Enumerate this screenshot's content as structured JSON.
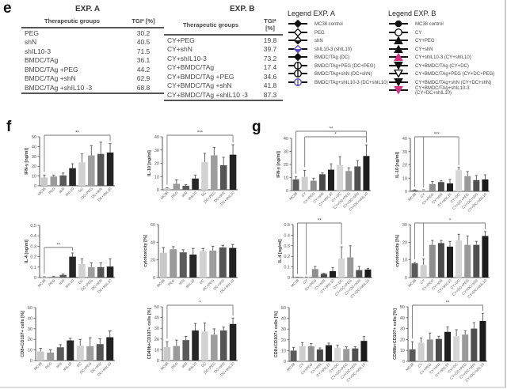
{
  "panels": {
    "e": "e",
    "f": "f",
    "g": "g"
  },
  "table_a": {
    "title": "EXP. A",
    "headers": [
      "Therapeutic groups",
      "TGI* [%]"
    ],
    "rows": [
      [
        "PEG",
        "30.2"
      ],
      [
        "shN",
        "40.5"
      ],
      [
        "shIL10-3",
        "71.5"
      ],
      [
        "BMDC/TAg",
        "36.1"
      ],
      [
        "BMDC/TAg +PEG",
        "44.2"
      ],
      [
        "BMDC/TAg +shN",
        "62.9"
      ],
      [
        "BMDC/TAg +shIL10 -3",
        "68.8"
      ]
    ]
  },
  "table_b": {
    "title": "EXP. B",
    "headers": [
      "Therapeutic groups",
      "TGI* [%]"
    ],
    "rows": [
      [
        "CY+PEG",
        "19.8"
      ],
      [
        "CY+shN",
        "39.7"
      ],
      [
        "CY+shIL10-3",
        "73.2"
      ],
      [
        "CY+BMDC/TAg",
        "17.4"
      ],
      [
        "CY+BMDC/TAg +PEG",
        "34.6"
      ],
      [
        "CY+BMDC/TAg +shN",
        "41.8"
      ],
      [
        "CY+BMDC/TAg +shIL10 -3",
        "87.3"
      ]
    ]
  },
  "legend_a": {
    "title": "Legend EXP. A",
    "items": [
      {
        "label": "MC38 control",
        "marker": "filled-diamond",
        "color": "#111111"
      },
      {
        "label": "PEG",
        "marker": "open-diamond",
        "color": "#111111"
      },
      {
        "label": "shN",
        "marker": "half-diamond",
        "color": "#111111"
      },
      {
        "label": "shIL10-3 (shIL10)",
        "marker": "half-diamond",
        "color": "#5b4bc4"
      },
      {
        "label": "BMDC/TAg (DC)",
        "marker": "filled-diamond",
        "color": "#111111"
      },
      {
        "label": "BMDC/TAg+PEG (DC+PEG)",
        "marker": "circle-split",
        "color": "#111111"
      },
      {
        "label": "BMDC/TAg+shN (DC+shN)",
        "marker": "circle-split",
        "color": "#111111"
      },
      {
        "label": "BMDC/TAg+shIL10-3 (DC+shIL10)",
        "marker": "circle-split",
        "color": "#5b4bc4"
      }
    ]
  },
  "legend_b": {
    "title": "Legend EXP. B",
    "items": [
      {
        "label": "MC38 control",
        "marker": "filled-circle",
        "color": "#111111"
      },
      {
        "label": "CY",
        "marker": "open-circle",
        "color": "#111111"
      },
      {
        "label": "CY+PEG",
        "marker": "triangle-up",
        "color": "#111111"
      },
      {
        "label": "CY+shN",
        "marker": "triangle-up",
        "color": "#111111"
      },
      {
        "label": "CY+shIL10-3 (CY+shIL10)",
        "marker": "triangle-up",
        "color": "#d63384"
      },
      {
        "label": "CY+BMDC/TAg (CY+DC)",
        "marker": "triangle-down",
        "color": "#111111"
      },
      {
        "label": "CY+BMDC/TAg+PEG (CY+DC+PEG)",
        "marker": "triangle-down-open",
        "color": "#111111"
      },
      {
        "label": "CY+BMDC/TAg+shN (CY+DC+shN)",
        "marker": "triangle-down",
        "color": "#111111"
      },
      {
        "label": "CY+BMDC/TAg+shIL10-3 (CY+DC+shIL10)",
        "marker": "triangle-down",
        "color": "#d63384"
      }
    ]
  },
  "chart_data": [
    {
      "id": "f1",
      "type": "bar",
      "panel": "f",
      "ylabel": "IFN-γ [ng/ml]",
      "ylim": [
        0,
        50
      ],
      "yticks": [
        0,
        10,
        20,
        30,
        40,
        50
      ],
      "categories": [
        "MC38",
        "PEG",
        "shN",
        "shIL10",
        "DC",
        "DC+PEG",
        "DC+shN",
        "DC+shIL10"
      ],
      "values": [
        8.5,
        9.5,
        10.5,
        18,
        24,
        31,
        32.5,
        34
      ],
      "errors": [
        2.5,
        1.5,
        2.5,
        4.5,
        8.5,
        10,
        12,
        9
      ],
      "colors": [
        "#c9c9c9",
        "#9a9a9a",
        "#5a5a5a",
        "#262626",
        "#d2d2d2",
        "#9e9e9e",
        "#555555",
        "#222222"
      ],
      "brackets": [
        {
          "from": 0,
          "to": [
            7
          ],
          "label": "**",
          "level": 0
        }
      ]
    },
    {
      "id": "f2",
      "type": "bar",
      "panel": "f",
      "ylabel": "IL-10 [ng/ml]",
      "ylim": [
        0,
        40
      ],
      "yticks": [
        0,
        10,
        20,
        30,
        40
      ],
      "categories": [
        "MC38",
        "PEG",
        "shN",
        "shIL10",
        "DC",
        "DC+PEG",
        "DC+shN",
        "DC+shIL10"
      ],
      "values": [
        1,
        4.5,
        3,
        8.5,
        21,
        26,
        18.5,
        26.5
      ],
      "errors": [
        0.5,
        3,
        0.8,
        2.5,
        6.5,
        6,
        6,
        7.5
      ],
      "colors": [
        "#c9c9c9",
        "#9a9a9a",
        "#5a5a5a",
        "#262626",
        "#d2d2d2",
        "#9e9e9e",
        "#555555",
        "#222222"
      ],
      "brackets": [
        {
          "from": 0,
          "to": [
            7
          ],
          "label": "***",
          "level": 0
        }
      ]
    },
    {
      "id": "f3",
      "type": "bar",
      "panel": "f",
      "ylabel": "IL-4 [ng/ml]",
      "ylim": [
        0,
        0.5
      ],
      "yticks": [
        0.0,
        0.1,
        0.2,
        0.3,
        0.4,
        0.5
      ],
      "categories": [
        "MC38",
        "PEG",
        "shN",
        "shIL10",
        "DC",
        "DC+PEG",
        "DC+shN",
        "DC+shIL10"
      ],
      "values": [
        0.005,
        0.008,
        0.025,
        0.2,
        0.13,
        0.1,
        0.1,
        0.105
      ],
      "errors": [
        0.003,
        0.004,
        0.008,
        0.035,
        0.05,
        0.04,
        0.04,
        0.075
      ],
      "colors": [
        "#c9c9c9",
        "#9a9a9a",
        "#5a5a5a",
        "#262626",
        "#d2d2d2",
        "#9e9e9e",
        "#555555",
        "#222222"
      ],
      "brackets": [
        {
          "from": 0,
          "to": [
            3
          ],
          "label": "**",
          "level": 0
        }
      ]
    },
    {
      "id": "f4",
      "type": "bar",
      "panel": "f",
      "ylabel": "cytotoxicity [%]",
      "ylim": [
        0,
        60
      ],
      "yticks": [
        0,
        20,
        40,
        60
      ],
      "categories": [
        "MC38",
        "PEG",
        "shN",
        "shIL10",
        "DC",
        "DC+PEG",
        "DC+shN",
        "DC+shIL10"
      ],
      "values": [
        28,
        32,
        28.5,
        26,
        30,
        30.5,
        34,
        33.5
      ],
      "errors": [
        6,
        3,
        3,
        7,
        3,
        5,
        2.5,
        4
      ],
      "colors": [
        "#c9c9c9",
        "#9a9a9a",
        "#5a5a5a",
        "#262626",
        "#d2d2d2",
        "#9e9e9e",
        "#555555",
        "#222222"
      ],
      "brackets": []
    },
    {
      "id": "f5",
      "type": "bar",
      "panel": "f",
      "ylabel": "CD8+CD107+ cells [%]",
      "ylim": [
        0,
        50
      ],
      "yticks": [
        0,
        10,
        20,
        30,
        40,
        50
      ],
      "categories": [
        "MC38",
        "PEG",
        "shN",
        "shIL10",
        "DC",
        "DC+PEG",
        "DC+shN",
        "DC+shIL10"
      ],
      "values": [
        8.5,
        7.5,
        12.5,
        19,
        14,
        13.5,
        15.5,
        22
      ],
      "errors": [
        3,
        2.5,
        2.5,
        2,
        6,
        8,
        5,
        6
      ],
      "colors": [
        "#c9c9c9",
        "#9a9a9a",
        "#5a5a5a",
        "#262626",
        "#d2d2d2",
        "#9e9e9e",
        "#555555",
        "#222222"
      ],
      "brackets": []
    },
    {
      "id": "f6",
      "type": "bar",
      "panel": "f",
      "ylabel": "CD49b+CD107+ cells [%]",
      "ylim": [
        0,
        50
      ],
      "yticks": [
        0,
        10,
        20,
        30,
        40,
        50
      ],
      "categories": [
        "MC38",
        "PEG",
        "shN",
        "shIL10",
        "DC",
        "DC+PEG",
        "DC+shN",
        "DC+shIL10"
      ],
      "values": [
        12.5,
        13.5,
        19,
        28,
        27,
        24,
        28,
        34
      ],
      "errors": [
        5,
        5.5,
        3.5,
        6.5,
        8,
        5.5,
        3,
        5.5
      ],
      "colors": [
        "#c9c9c9",
        "#9a9a9a",
        "#5a5a5a",
        "#262626",
        "#d2d2d2",
        "#9e9e9e",
        "#555555",
        "#222222"
      ],
      "brackets": [
        {
          "from": 0,
          "to": [
            7
          ],
          "label": "*",
          "level": 0
        }
      ]
    },
    {
      "id": "g1",
      "type": "bar",
      "panel": "g",
      "ylabel": "IFN-γ [ng/ml]",
      "ylim": [
        0,
        40
      ],
      "yticks": [
        0,
        10,
        20,
        30,
        40
      ],
      "categories": [
        "MC38",
        "CY",
        "CY+PEG",
        "CY+shN",
        "CY+shIL10",
        "CY+DC",
        "CY+DC+PEG",
        "CY+DC+shN",
        "CY+DC+shIL10"
      ],
      "values": [
        8.5,
        10.5,
        7.5,
        12.5,
        16,
        19.5,
        15,
        18.5,
        26.5
      ],
      "errors": [
        2,
        5,
        2,
        1,
        4.5,
        6.5,
        2.5,
        4.5,
        8.5
      ],
      "colors": [
        "#5a5a5a",
        "#cfcfcf",
        "#8f8f8f",
        "#4a4a4a",
        "#1f1f1f",
        "#d6d6d6",
        "#999999",
        "#505050",
        "#1c1c1c"
      ],
      "brackets": [
        {
          "from": 0,
          "to": [
            8
          ],
          "label": "**",
          "level": 1
        },
        {
          "from": 1,
          "to": [
            8
          ],
          "label": "*",
          "level": 0
        }
      ]
    },
    {
      "id": "g2",
      "type": "bar",
      "panel": "g",
      "ylabel": "IL-10 [ng/ml]",
      "ylim": [
        0,
        40
      ],
      "yticks": [
        0,
        10,
        20,
        30,
        40
      ],
      "categories": [
        "MC38",
        "CY",
        "CY+PEG",
        "CY+shN",
        "CY+shIL10",
        "CY+DC",
        "CY+DC+PEG",
        "CY+DC+shN",
        "CY+DC+shIL10"
      ],
      "values": [
        0.8,
        0.8,
        5.5,
        7,
        6,
        16,
        11.5,
        8.5,
        9
      ],
      "errors": [
        0.4,
        0.4,
        2,
        1,
        3,
        2,
        3.5,
        3.5,
        3.5
      ],
      "colors": [
        "#5a5a5a",
        "#cfcfcf",
        "#8f8f8f",
        "#4a4a4a",
        "#1f1f1f",
        "#d6d6d6",
        "#999999",
        "#505050",
        "#1c1c1c"
      ],
      "brackets": [
        {
          "from": 0,
          "to": [
            1,
            5
          ],
          "label": "***",
          "level": 0
        }
      ]
    },
    {
      "id": "g3",
      "type": "bar",
      "panel": "g",
      "ylabel": "IL-4 [ng/ml]",
      "ylim": [
        0,
        0.5
      ],
      "yticks": [
        0.0,
        0.1,
        0.2,
        0.3,
        0.4,
        0.5
      ],
      "categories": [
        "MC38",
        "CY",
        "CY+PEG",
        "CY+shN",
        "CY+shIL10",
        "CY+DC",
        "CY+DC+PEG",
        "CY+DC+shN",
        "CY+DC+shIL10"
      ],
      "values": [
        0.002,
        0.003,
        0.08,
        0.035,
        0.06,
        0.18,
        0.19,
        0.07,
        0.075
      ],
      "errors": [
        0.001,
        0.002,
        0.025,
        0.005,
        0.035,
        0.11,
        0.11,
        0.035,
        0.012
      ],
      "colors": [
        "#5a5a5a",
        "#cfcfcf",
        "#8f8f8f",
        "#4a4a4a",
        "#1f1f1f",
        "#d6d6d6",
        "#999999",
        "#505050",
        "#1c1c1c"
      ],
      "brackets": [
        {
          "from": 0,
          "to": [
            1,
            5
          ],
          "label": "**",
          "level": 0
        }
      ]
    },
    {
      "id": "g4",
      "type": "bar",
      "panel": "g",
      "ylabel": "cytotoxicity [%]",
      "ylim": [
        0,
        30
      ],
      "yticks": [
        0,
        10,
        20,
        30
      ],
      "categories": [
        "MC38",
        "CY",
        "CY+PEG",
        "CY+shN",
        "CY+shIL10",
        "CY+DC",
        "CY+DC+PEG",
        "CY+DC+shN",
        "CY+DC+shIL10"
      ],
      "values": [
        8,
        7,
        18.5,
        19.5,
        17.5,
        21,
        18.5,
        18.5,
        23.5
      ],
      "errors": [
        0.5,
        3.5,
        2.5,
        1.5,
        3,
        3.5,
        5,
        2,
        2.5
      ],
      "colors": [
        "#5a5a5a",
        "#cfcfcf",
        "#8f8f8f",
        "#4a4a4a",
        "#1f1f1f",
        "#d6d6d6",
        "#999999",
        "#505050",
        "#1c1c1c"
      ],
      "brackets": [
        {
          "from": 0,
          "to": [
            1,
            8
          ],
          "label": "*",
          "level": 0
        }
      ]
    },
    {
      "id": "g5",
      "type": "bar",
      "panel": "g",
      "ylabel": "CD8+CD107+ cells [%]",
      "ylim": [
        0,
        50
      ],
      "yticks": [
        0,
        10,
        20,
        30,
        40,
        50
      ],
      "categories": [
        "MC38",
        "CY",
        "CY+PEG",
        "CY+shN",
        "CY+shIL10",
        "CY+DC",
        "CY+DC+PEG",
        "CY+DC+shN",
        "CY+DC+shIL10"
      ],
      "values": [
        10,
        14,
        14,
        11,
        15,
        12.5,
        11.5,
        12,
        19
      ],
      "errors": [
        3,
        3.5,
        2.5,
        1.5,
        2,
        2.5,
        2,
        1.5,
        4
      ],
      "colors": [
        "#5a5a5a",
        "#cfcfcf",
        "#8f8f8f",
        "#4a4a4a",
        "#1f1f1f",
        "#d6d6d6",
        "#999999",
        "#505050",
        "#1c1c1c"
      ],
      "brackets": []
    },
    {
      "id": "g6",
      "type": "bar",
      "panel": "g",
      "ylabel": "CD49b+CD107+ cells [%]",
      "ylim": [
        0,
        50
      ],
      "yticks": [
        0,
        10,
        20,
        30,
        40,
        50
      ],
      "categories": [
        "MC38",
        "CY",
        "CY+PEG",
        "CY+shN",
        "CY+shIL10",
        "CY+DC",
        "CY+DC+PEG",
        "CY+DC+shN",
        "CY+DC+shIL10"
      ],
      "values": [
        11,
        17,
        20,
        20.5,
        27,
        23,
        24.5,
        30,
        37
      ],
      "errors": [
        7,
        4.5,
        6,
        2.5,
        4.5,
        6,
        3.5,
        5.5,
        7
      ],
      "colors": [
        "#5a5a5a",
        "#cfcfcf",
        "#8f8f8f",
        "#4a4a4a",
        "#1f1f1f",
        "#d6d6d6",
        "#999999",
        "#505050",
        "#1c1c1c"
      ],
      "brackets": [
        {
          "from": 0,
          "to": [
            8
          ],
          "label": "**",
          "level": 0
        }
      ]
    }
  ]
}
